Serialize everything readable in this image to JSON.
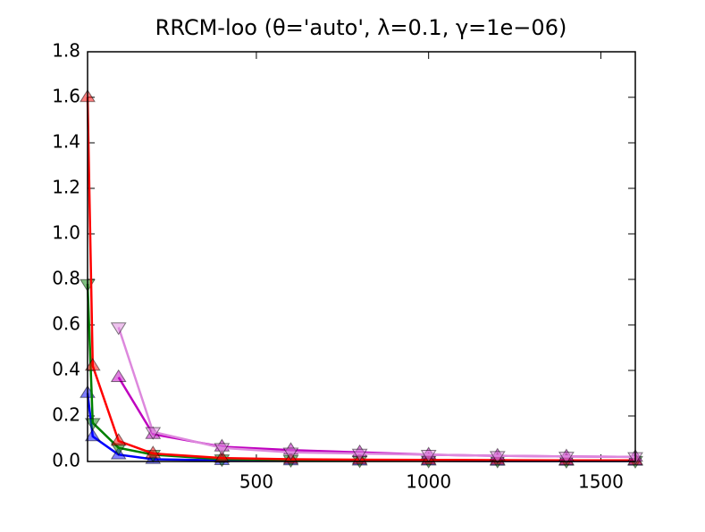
{
  "chart_data": {
    "type": "line",
    "title": "RRCM-loo (θ='auto', λ=0.1, γ=1e−06)",
    "x": [
      10,
      25,
      100,
      200,
      400,
      600,
      800,
      1000,
      1200,
      1400,
      1600
    ],
    "xlim": [
      10,
      1600
    ],
    "xticks": [
      500,
      1000,
      1500
    ],
    "ylim": [
      0,
      1.8
    ],
    "yticks": [
      {
        "value": 0,
        "label": "0.0"
      },
      0.2,
      0.4,
      0.6,
      0.8,
      {
        "value": 1,
        "label": "1.0"
      },
      1.2,
      1.4,
      1.6,
      1.8
    ],
    "grid": false,
    "series": [
      {
        "color": "#0000ff",
        "marker": "^",
        "values": [
          0.3,
          0.11,
          0.03,
          0.01,
          0.005,
          0.004,
          0.003,
          0.003,
          0.002,
          0.002,
          0.002
        ]
      },
      {
        "color": "#008000",
        "marker": "v",
        "values": [
          0.78,
          0.17,
          0.06,
          0.03,
          0.01,
          0.007,
          0.005,
          0.004,
          0.004,
          0.003,
          0.003
        ]
      },
      {
        "color": "#ff0000",
        "marker": "^",
        "values": [
          1.6,
          0.42,
          0.09,
          0.035,
          0.015,
          0.01,
          0.008,
          0.007,
          0.006,
          0.005,
          0.005
        ]
      },
      {
        "color": "#bf00bf",
        "marker": "^",
        "values": [
          null,
          null,
          0.37,
          0.12,
          0.065,
          0.05,
          0.04,
          0.03,
          0.025,
          0.022,
          0.02
        ]
      },
      {
        "color": "#dd88dd",
        "marker": "v",
        "values": [
          null,
          null,
          0.59,
          0.13,
          0.06,
          0.04,
          0.035,
          0.03,
          0.025,
          0.022,
          0.02
        ]
      }
    ]
  }
}
